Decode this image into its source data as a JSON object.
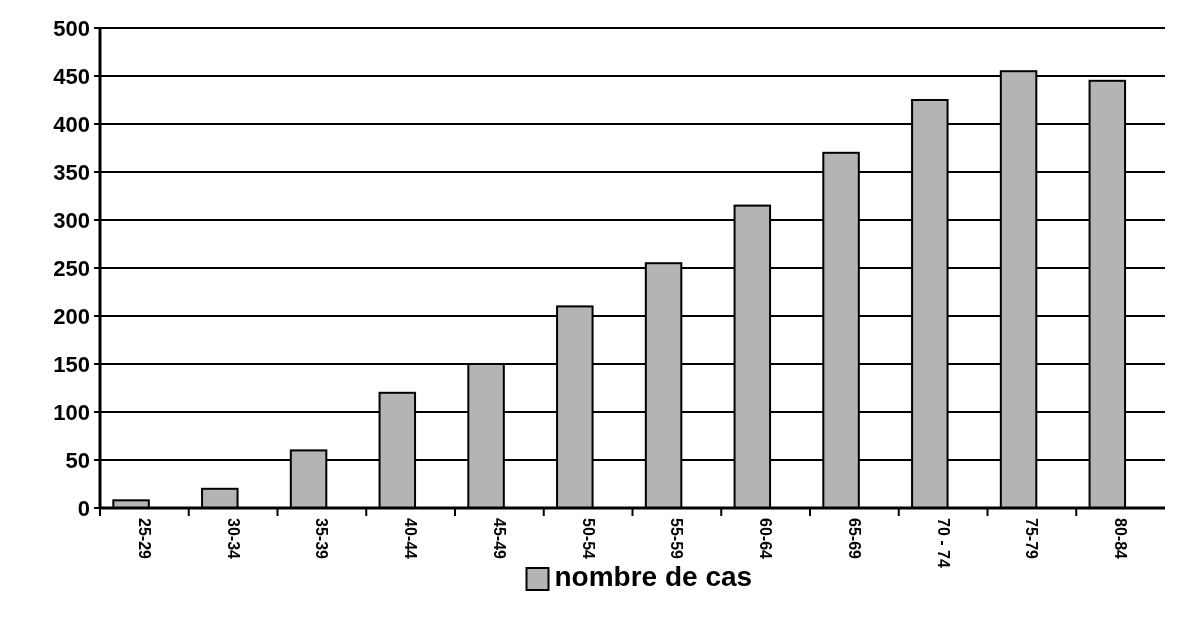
{
  "chart_data": {
    "type": "bar",
    "categories": [
      "25-29",
      "30-34",
      "35-39",
      "40-44",
      "45-49",
      "50-54",
      "55-59",
      "60-64",
      "65-69",
      "70 - 74",
      "75-79",
      "80-84"
    ],
    "series": [
      {
        "name": "nombre de cas",
        "color": "#b4b4b4",
        "values": [
          8,
          20,
          60,
          120,
          150,
          210,
          255,
          315,
          370,
          425,
          455,
          445
        ]
      }
    ],
    "ylim": [
      0,
      500
    ],
    "yticks": [
      0,
      50,
      100,
      150,
      200,
      250,
      300,
      350,
      400,
      450,
      500
    ],
    "grid": "y",
    "legend": "bottom"
  }
}
